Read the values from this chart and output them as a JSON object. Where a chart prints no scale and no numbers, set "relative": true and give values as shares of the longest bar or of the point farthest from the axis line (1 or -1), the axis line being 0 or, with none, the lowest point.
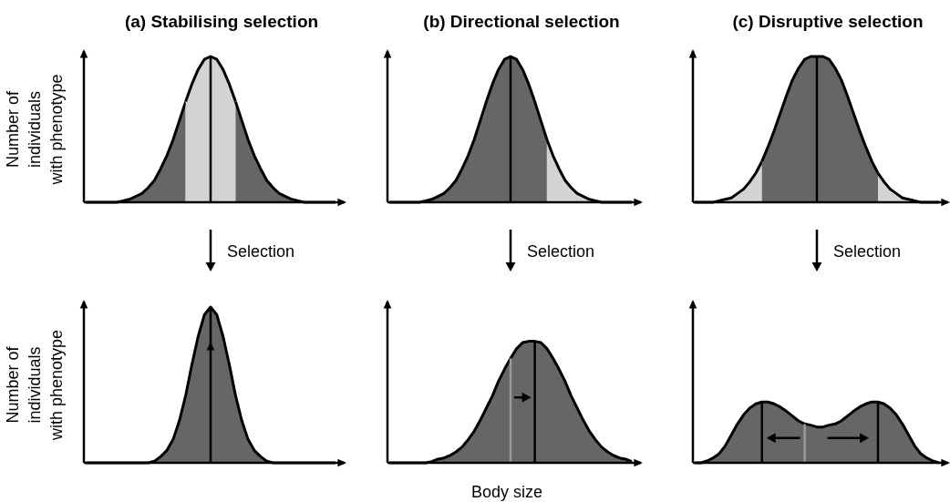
{
  "chart_data": [
    {
      "type": "area",
      "title": "(a) Stabilising selection",
      "ylabel": "Number of individuals with phenotype",
      "relative": true,
      "annotations": [
        "Selection"
      ],
      "categories": [
        null,
        null,
        null,
        null,
        null,
        null,
        null,
        null,
        null,
        null,
        null,
        null,
        null,
        null,
        null,
        null,
        null,
        null,
        null,
        null,
        null,
        null,
        null,
        null,
        null,
        null,
        null,
        null,
        null,
        null,
        null,
        null,
        null,
        null,
        null,
        null,
        null,
        null,
        null,
        null,
        null
      ],
      "series": [
        {
          "color": "#666666",
          "values": [
            0,
            0,
            0,
            0,
            0,
            0,
            0.01,
            0.02,
            0.04,
            0.06,
            0.1,
            0.15,
            0.23,
            0.32,
            0.43,
            0.56,
            0.69,
            null,
            null,
            null,
            null,
            null,
            null,
            null,
            null,
            null,
            null,
            null,
            null,
            null,
            null,
            null,
            null,
            null,
            null,
            null,
            null,
            null,
            null,
            null,
            null
          ]
        },
        {
          "color": "#d3d3d3",
          "values": [
            null,
            null,
            null,
            null,
            null,
            null,
            null,
            null,
            null,
            null,
            null,
            null,
            null,
            null,
            null,
            null,
            0.69,
            0.81,
            0.91,
            0.98,
            1,
            0.98,
            0.91,
            0.81,
            0.69,
            null,
            null,
            null,
            null,
            null,
            null,
            null,
            null,
            null,
            null,
            null,
            null,
            null,
            null,
            null,
            null
          ]
        },
        {
          "color": "#666666",
          "values": [
            null,
            null,
            null,
            null,
            null,
            null,
            null,
            null,
            null,
            null,
            null,
            null,
            null,
            null,
            null,
            null,
            null,
            null,
            null,
            null,
            null,
            null,
            null,
            null,
            0.69,
            0.56,
            0.43,
            0.32,
            0.23,
            0.15,
            0.1,
            0.06,
            0.04,
            0.02,
            0.01,
            0,
            0,
            0,
            0,
            0,
            0
          ]
        }
      ]
    },
    {
      "type": "area",
      "title": "(b) Directional selection",
      "relative": true,
      "annotations": [
        "Selection"
      ],
      "categories": [
        null,
        null,
        null,
        null,
        null,
        null,
        null,
        null,
        null,
        null,
        null,
        null,
        null,
        null,
        null,
        null,
        null,
        null,
        null,
        null,
        null,
        null,
        null,
        null,
        null,
        null,
        null,
        null,
        null,
        null,
        null,
        null,
        null,
        null,
        null,
        null,
        null,
        null,
        null,
        null,
        null
      ],
      "series": [
        {
          "color": "#666666",
          "values": [
            0,
            0,
            0,
            0,
            0,
            0,
            0.01,
            0.02,
            0.04,
            0.06,
            0.1,
            0.15,
            0.23,
            0.32,
            0.43,
            0.56,
            0.69,
            0.81,
            0.91,
            0.98,
            1,
            0.98,
            0.91,
            0.81,
            0.69,
            0.56,
            0.43,
            null,
            null,
            null,
            null,
            null,
            null,
            null,
            null,
            null,
            null,
            null,
            null,
            null,
            null
          ]
        },
        {
          "color": "#d3d3d3",
          "values": [
            null,
            null,
            null,
            null,
            null,
            null,
            null,
            null,
            null,
            null,
            null,
            null,
            null,
            null,
            null,
            null,
            null,
            null,
            null,
            null,
            null,
            null,
            null,
            null,
            null,
            null,
            0.43,
            0.32,
            0.23,
            0.15,
            0.1,
            0.06,
            0.04,
            0.02,
            0.01,
            0,
            0,
            0,
            0,
            0,
            0
          ]
        }
      ]
    },
    {
      "type": "area",
      "title": "(c) Disruptive selection",
      "relative": true,
      "annotations": [
        "Selection"
      ],
      "categories": [
        null,
        null,
        null,
        null,
        null,
        null,
        null,
        null,
        null,
        null,
        null,
        null,
        null,
        null,
        null,
        null,
        null,
        null,
        null,
        null,
        null,
        null,
        null,
        null,
        null,
        null,
        null,
        null,
        null,
        null,
        null,
        null,
        null,
        null,
        null,
        null,
        null,
        null,
        null,
        null,
        null
      ],
      "series": [
        {
          "color": "#d3d3d3",
          "values": [
            0,
            0,
            0,
            0,
            0.01,
            0.02,
            0.03,
            0.06,
            0.09,
            0.14,
            0.2,
            0.28,
            null,
            null,
            null,
            null,
            null,
            null,
            null,
            null,
            null,
            null,
            null,
            null,
            null,
            null,
            null,
            null,
            null,
            null,
            null,
            null,
            null,
            null,
            null,
            null,
            null,
            null,
            null,
            null,
            null
          ]
        },
        {
          "color": "#666666",
          "values": [
            null,
            null,
            null,
            null,
            null,
            null,
            null,
            null,
            null,
            null,
            null,
            0.28,
            0.38,
            0.49,
            0.61,
            0.73,
            0.84,
            0.92,
            0.98,
            1,
            1,
            1,
            0.98,
            0.92,
            0.84,
            0.73,
            0.61,
            0.49,
            0.38,
            0.28,
            0.2,
            null,
            null,
            null,
            null,
            null,
            null,
            null,
            null,
            null,
            null
          ]
        },
        {
          "color": "#d3d3d3",
          "values": [
            null,
            null,
            null,
            null,
            null,
            null,
            null,
            null,
            null,
            null,
            null,
            null,
            null,
            null,
            null,
            null,
            null,
            null,
            null,
            null,
            null,
            null,
            null,
            null,
            null,
            null,
            null,
            null,
            null,
            null,
            0.2,
            0.14,
            0.09,
            0.06,
            0.03,
            0.02,
            0.01,
            0,
            0,
            0,
            0
          ]
        }
      ]
    },
    {
      "type": "area",
      "ylabel": "Number of individuals with phenotype",
      "relative": true,
      "categories": [
        null,
        null,
        null,
        null,
        null,
        null,
        null,
        null,
        null,
        null,
        null,
        null,
        null,
        null,
        null,
        null,
        null,
        null,
        null,
        null,
        null,
        null,
        null,
        null,
        null,
        null,
        null,
        null,
        null,
        null,
        null,
        null,
        null,
        null,
        null,
        null,
        null,
        null,
        null,
        null,
        null
      ],
      "series": [
        {
          "color": "#666666",
          "values": [
            0,
            0,
            0,
            0,
            0,
            0,
            0,
            0,
            0,
            0,
            0,
            0.01,
            0.04,
            0.08,
            0.15,
            0.27,
            0.43,
            0.63,
            0.81,
            0.95,
            1,
            0.95,
            0.81,
            0.63,
            0.43,
            0.27,
            0.15,
            0.08,
            0.04,
            0.01,
            0,
            0,
            0,
            0,
            0,
            0,
            0,
            0,
            0,
            0,
            0
          ]
        }
      ]
    },
    {
      "type": "area",
      "xlabel": "Body size",
      "relative": true,
      "categories": [
        null,
        null,
        null,
        null,
        null,
        null,
        null,
        null,
        null,
        null,
        null,
        null,
        null,
        null,
        null,
        null,
        null,
        null,
        null,
        null,
        null,
        null,
        null,
        null,
        null,
        null,
        null,
        null,
        null,
        null,
        null,
        null,
        null,
        null,
        null,
        null,
        null,
        null,
        null,
        null,
        null
      ],
      "series": [
        {
          "color": "#666666",
          "values": [
            0,
            0,
            0,
            0,
            0,
            0,
            0,
            0.01,
            0.03,
            0.04,
            0.06,
            0.09,
            0.13,
            0.19,
            0.26,
            0.35,
            0.45,
            0.55,
            0.67,
            0.77,
            0.86,
            0.94,
            0.99,
            1,
            1,
            0.99,
            0.94,
            0.86,
            0.77,
            0.67,
            0.55,
            0.45,
            0.35,
            0.26,
            0.19,
            0.13,
            0.09,
            0.06,
            0.04,
            0.03,
            0.01
          ]
        }
      ]
    },
    {
      "type": "area",
      "relative": true,
      "categories": [
        null,
        null,
        null,
        null,
        null,
        null,
        null,
        null,
        null,
        null,
        null,
        null,
        null,
        null,
        null,
        null,
        null,
        null,
        null,
        null,
        null,
        null,
        null,
        null,
        null,
        null,
        null,
        null,
        null,
        null,
        null,
        null,
        null,
        null,
        null,
        null,
        null,
        null,
        null,
        null,
        null
      ],
      "series": [
        {
          "color": "#666666",
          "values": [
            0,
            0,
            0.03,
            0.08,
            0.15,
            0.28,
            0.46,
            0.64,
            0.79,
            0.9,
            0.97,
            1,
            1,
            0.97,
            0.92,
            0.85,
            0.77,
            0.69,
            0.64,
            0.62,
            0.59,
            0.59,
            0.62,
            0.64,
            0.69,
            0.77,
            0.85,
            0.92,
            0.97,
            1,
            1,
            0.97,
            0.9,
            0.79,
            0.64,
            0.46,
            0.28,
            0.15,
            0.08,
            0.03,
            0
          ]
        }
      ]
    }
  ]
}
